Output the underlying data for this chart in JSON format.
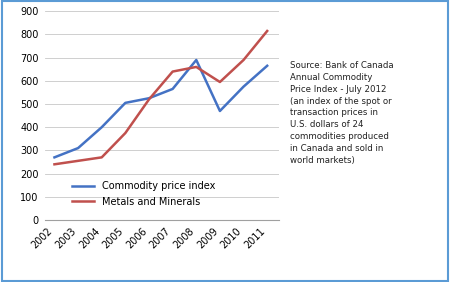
{
  "years": [
    2002,
    2003,
    2004,
    2005,
    2006,
    2007,
    2008,
    2009,
    2010,
    2011
  ],
  "commodity_price_index": [
    270,
    310,
    400,
    505,
    525,
    565,
    690,
    470,
    575,
    665
  ],
  "metals_and_minerals": [
    240,
    255,
    270,
    375,
    520,
    640,
    660,
    595,
    690,
    815
  ],
  "line_color_blue": "#4472C4",
  "line_color_red": "#C0504D",
  "ylim": [
    0,
    900
  ],
  "yticks": [
    0,
    100,
    200,
    300,
    400,
    500,
    600,
    700,
    800,
    900
  ],
  "legend_label_blue": "Commodity price index",
  "legend_label_red": "Metals and Minerals",
  "source_text": "Source: Bank of Canada\nAnnual Commodity\nPrice Index - July 2012\n(an index of the spot or\ntransaction prices in\nU.S. dollars of 24\ncommodities produced\nin Canada and sold in\nworld markets)",
  "bg_color": "#FFFFFF",
  "border_color": "#5B9BD5",
  "grid_color": "#C8C8C8"
}
